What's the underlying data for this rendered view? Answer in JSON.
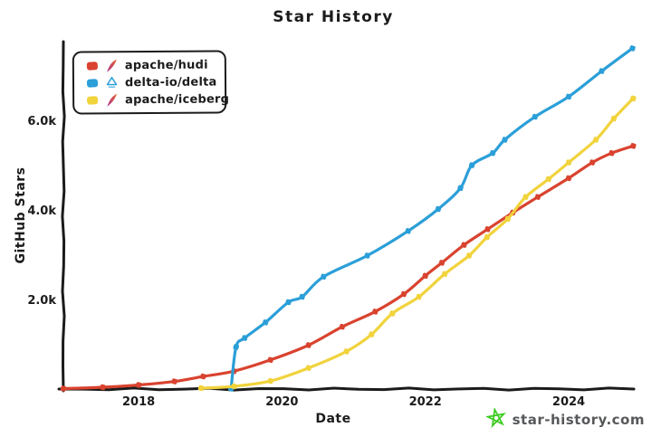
{
  "chart_data": {
    "type": "line",
    "title": "Star History",
    "xlabel": "Date",
    "ylabel": "GitHub Stars",
    "xlim": [
      2016.95,
      2024.91
    ],
    "ylim": [
      0,
      7800
    ],
    "grid": false,
    "legend_position": "top-left",
    "x_ticks": [
      {
        "value": 2018,
        "label": "2018"
      },
      {
        "value": 2020,
        "label": "2020"
      },
      {
        "value": 2022,
        "label": "2022"
      },
      {
        "value": 2024,
        "label": "2024"
      }
    ],
    "y_ticks": [
      {
        "value": 2000,
        "label": "2.0k"
      },
      {
        "value": 4000,
        "label": "4.0k"
      },
      {
        "value": 6000,
        "label": "6.0k"
      }
    ],
    "series": [
      {
        "name": "apache/hudi",
        "color": "#d9432f",
        "icon": "apache-feather-icon",
        "points": [
          [
            2016.95,
            10
          ],
          [
            2017.5,
            40
          ],
          [
            2018.0,
            90
          ],
          [
            2018.5,
            170
          ],
          [
            2018.9,
            280
          ],
          [
            2019.33,
            400
          ],
          [
            2019.84,
            650
          ],
          [
            2020.37,
            980
          ],
          [
            2020.84,
            1390
          ],
          [
            2021.3,
            1730
          ],
          [
            2021.7,
            2120
          ],
          [
            2022.0,
            2530
          ],
          [
            2022.23,
            2820
          ],
          [
            2022.54,
            3220
          ],
          [
            2022.87,
            3570
          ],
          [
            2023.22,
            3940
          ],
          [
            2023.57,
            4290
          ],
          [
            2024.0,
            4710
          ],
          [
            2024.33,
            5060
          ],
          [
            2024.6,
            5270
          ],
          [
            2024.9,
            5430
          ]
        ]
      },
      {
        "name": "delta-io/delta",
        "color": "#2b9fd8",
        "icon": "delta-lake-icon",
        "points": [
          [
            2019.29,
            10
          ],
          [
            2019.36,
            940
          ],
          [
            2019.48,
            1140
          ],
          [
            2019.77,
            1490
          ],
          [
            2020.09,
            1940
          ],
          [
            2020.28,
            2060
          ],
          [
            2020.58,
            2510
          ],
          [
            2021.19,
            2980
          ],
          [
            2021.76,
            3530
          ],
          [
            2022.18,
            4020
          ],
          [
            2022.49,
            4490
          ],
          [
            2022.65,
            5000
          ],
          [
            2022.94,
            5270
          ],
          [
            2023.11,
            5570
          ],
          [
            2023.53,
            6080
          ],
          [
            2024.0,
            6530
          ],
          [
            2024.46,
            7100
          ],
          [
            2024.89,
            7610
          ]
        ]
      },
      {
        "name": "apache/iceberg",
        "color": "#f1d33c",
        "icon": "apache-feather-icon",
        "points": [
          [
            2018.87,
            20
          ],
          [
            2019.33,
            60
          ],
          [
            2019.84,
            180
          ],
          [
            2020.37,
            470
          ],
          [
            2020.9,
            840
          ],
          [
            2021.25,
            1220
          ],
          [
            2021.54,
            1690
          ],
          [
            2021.91,
            2060
          ],
          [
            2022.27,
            2570
          ],
          [
            2022.61,
            2980
          ],
          [
            2022.86,
            3390
          ],
          [
            2023.15,
            3800
          ],
          [
            2023.4,
            4290
          ],
          [
            2023.72,
            4690
          ],
          [
            2024.0,
            5060
          ],
          [
            2024.38,
            5570
          ],
          [
            2024.63,
            6040
          ],
          [
            2024.9,
            6490
          ]
        ]
      }
    ]
  },
  "footer": {
    "site": "star-history.com",
    "star_color": "#3ecb23",
    "text_color": "#57585a"
  },
  "colors": {
    "axis": "#1b1b1b",
    "background": "#ffffff"
  }
}
